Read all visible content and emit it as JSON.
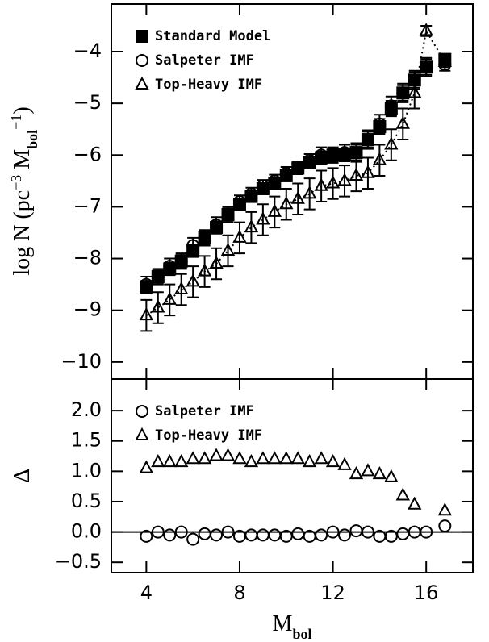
{
  "chart_data": [
    {
      "type": "errorbar",
      "ylabel": [
        "log N (pc",
        "−3",
        " M",
        "bol",
        "−1",
        ")"
      ],
      "legend": "upper left",
      "xlim": [
        2.5,
        18
      ],
      "ylim": [
        -10.33,
        -3.08
      ],
      "yticks": [
        {
          "value": -10,
          "label": "−10"
        },
        {
          "value": -9,
          "label": "−9"
        },
        {
          "value": -8,
          "label": "−8"
        },
        {
          "value": -7,
          "label": "−7"
        },
        {
          "value": -6,
          "label": "−6"
        },
        {
          "value": -5,
          "label": "−5"
        },
        {
          "value": -4,
          "label": "−4"
        }
      ],
      "x": [
        4,
        4.5,
        5,
        5.5,
        6,
        6.5,
        7,
        7.5,
        8,
        8.5,
        9,
        9.5,
        10,
        10.5,
        11,
        11.5,
        12,
        12.5,
        13,
        13.5,
        14,
        14.5,
        15,
        15.5,
        16,
        16.8
      ],
      "series": [
        {
          "name": "Standard Model",
          "marker": "square",
          "filled": true,
          "color": "#000000",
          "values": [
            -8.55,
            -8.35,
            -8.2,
            -8.05,
            -7.85,
            -7.6,
            -7.4,
            -7.15,
            -6.95,
            -6.8,
            -6.65,
            -6.55,
            -6.4,
            -6.25,
            -6.15,
            -6.05,
            -6.0,
            -6.0,
            -5.95,
            -5.7,
            -5.45,
            -5.1,
            -4.8,
            -4.55,
            -4.3,
            -4.15
          ],
          "errors": [
            0.12,
            0.12,
            0.12,
            0.12,
            0.12,
            0.12,
            0.12,
            0.12,
            0.1,
            0.1,
            0.1,
            0.1,
            0.1,
            0.1,
            0.1,
            0.12,
            0.12,
            0.12,
            0.15,
            0.15,
            0.15,
            0.15,
            0.15,
            0.15,
            0.15,
            0.1
          ]
        },
        {
          "name": "Salpeter IMF",
          "marker": "circle",
          "filled": false,
          "color": "#000000",
          "values": [
            -8.5,
            -8.35,
            -8.15,
            -8.05,
            -7.75,
            -7.6,
            -7.35,
            -7.15,
            -6.9,
            -6.75,
            -6.6,
            -6.5,
            -6.35,
            -6.25,
            -6.1,
            -6.0,
            -6.0,
            -5.95,
            -5.95,
            -5.7,
            -5.4,
            -5.05,
            -4.8,
            -4.55,
            -4.3,
            -4.25
          ],
          "errors": [
            0.15,
            0.15,
            0.15,
            0.15,
            0.15,
            0.15,
            0.15,
            0.15,
            0.12,
            0.12,
            0.12,
            0.12,
            0.12,
            0.12,
            0.12,
            0.15,
            0.15,
            0.15,
            0.18,
            0.18,
            0.18,
            0.18,
            0.18,
            0.18,
            0.18,
            0.12
          ]
        },
        {
          "name": "Top-Heavy IMF",
          "marker": "triangle",
          "filled": false,
          "color": "#000000",
          "linestyle": "dotted",
          "values": [
            -9.1,
            -8.95,
            -8.8,
            -8.6,
            -8.45,
            -8.25,
            -8.1,
            -7.85,
            -7.6,
            -7.4,
            -7.25,
            -7.1,
            -6.95,
            -6.85,
            -6.75,
            -6.6,
            -6.55,
            -6.5,
            -6.4,
            -6.35,
            -6.1,
            -5.8,
            -5.4,
            -4.8,
            -3.6,
            -4.2
          ],
          "errors": [
            0.3,
            0.3,
            0.3,
            0.3,
            0.3,
            0.3,
            0.3,
            0.3,
            0.3,
            0.3,
            0.3,
            0.3,
            0.3,
            0.3,
            0.3,
            0.3,
            0.3,
            0.3,
            0.3,
            0.3,
            0.3,
            0.3,
            0.3,
            0.3,
            0.1,
            0.1
          ]
        }
      ]
    },
    {
      "type": "scatter",
      "ylabel": "Δ",
      "xlabel": [
        "M",
        "bol"
      ],
      "legend": "upper left",
      "xlim": [
        2.5,
        18
      ],
      "ylim": [
        -0.67,
        2.52
      ],
      "xticks": [
        4,
        8,
        12,
        16
      ],
      "yticks": [
        {
          "value": -0.5,
          "label": "−0.5"
        },
        {
          "value": 0,
          "label": "0.0"
        },
        {
          "value": 0.5,
          "label": "0.5"
        },
        {
          "value": 1,
          "label": "1.0"
        },
        {
          "value": 1.5,
          "label": "1.5"
        },
        {
          "value": 2,
          "label": "2.0"
        }
      ],
      "hline": 0,
      "x": [
        4,
        4.5,
        5,
        5.5,
        6,
        6.5,
        7,
        7.5,
        8,
        8.5,
        9,
        9.5,
        10,
        10.5,
        11,
        11.5,
        12,
        12.5,
        13,
        13.5,
        14,
        14.5,
        15,
        15.5,
        16,
        16.8
      ],
      "series": [
        {
          "name": "Salpeter IMF",
          "marker": "circle",
          "filled": false,
          "color": "#000000",
          "values": [
            -0.07,
            0,
            -0.05,
            0,
            -0.12,
            -0.03,
            -0.05,
            0,
            -0.07,
            -0.05,
            -0.05,
            -0.05,
            -0.07,
            -0.03,
            -0.07,
            -0.05,
            0,
            -0.05,
            0.02,
            0,
            -0.07,
            -0.07,
            -0.03,
            0,
            0,
            0.1
          ]
        },
        {
          "name": "Top-Heavy IMF",
          "marker": "triangle",
          "filled": false,
          "color": "#000000",
          "values": [
            1.05,
            1.15,
            1.15,
            1.15,
            1.2,
            1.2,
            1.25,
            1.25,
            1.2,
            1.15,
            1.2,
            1.2,
            1.2,
            1.2,
            1.15,
            1.2,
            1.15,
            1.1,
            0.95,
            1.0,
            0.95,
            0.9,
            0.6,
            0.45,
            null,
            0.35
          ]
        }
      ]
    }
  ]
}
